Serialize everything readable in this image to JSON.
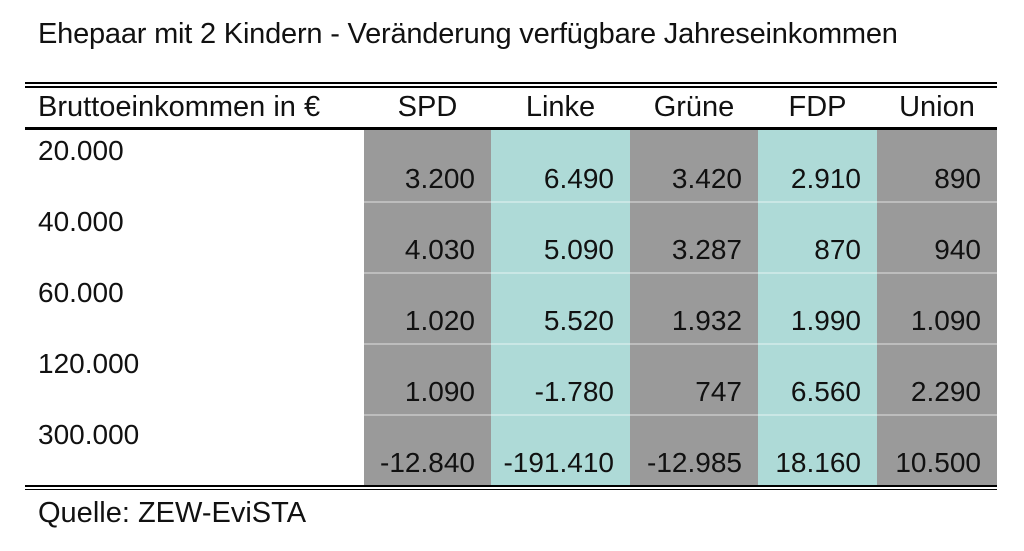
{
  "page": {
    "title": "Ehepaar mit 2 Kindern - Veränderung verfügbare Jahreseinkommen",
    "source": "Quelle: ZEW-EviSTA"
  },
  "colors": {
    "column_gray": "#9a9a9a",
    "column_teal": "#aedad7",
    "row_separator": "rgba(255,255,255,0.35)",
    "text": "#111111",
    "rule": "#000000"
  },
  "chart_data": {
    "type": "table",
    "title": "Ehepaar mit 2 Kindern - Veränderung verfügbare Jahreseinkommen",
    "columns": [
      "Bruttoeinkommen in €",
      "SPD",
      "Linke",
      "Grüne",
      "FDP",
      "Union"
    ],
    "column_fills": [
      "white",
      "gray",
      "teal",
      "gray",
      "teal",
      "gray"
    ],
    "rows": [
      {
        "label": "20.000",
        "values": [
          "3.200",
          "6.490",
          "3.420",
          "2.910",
          "890"
        ]
      },
      {
        "label": "40.000",
        "values": [
          "4.030",
          "5.090",
          "3.287",
          "870",
          "940"
        ]
      },
      {
        "label": "60.000",
        "values": [
          "1.020",
          "5.520",
          "1.932",
          "1.990",
          "1.090"
        ]
      },
      {
        "label": "120.000",
        "values": [
          "1.090",
          "-1.780",
          "747",
          "6.560",
          "2.290"
        ]
      },
      {
        "label": "300.000",
        "values": [
          "-12.840",
          "-191.410",
          "-12.985",
          "18.160",
          "10.500"
        ]
      }
    ],
    "source": "Quelle: ZEW-EviSTA",
    "legend_position": "none",
    "grid": "row-separators-in-filled-columns-only"
  }
}
